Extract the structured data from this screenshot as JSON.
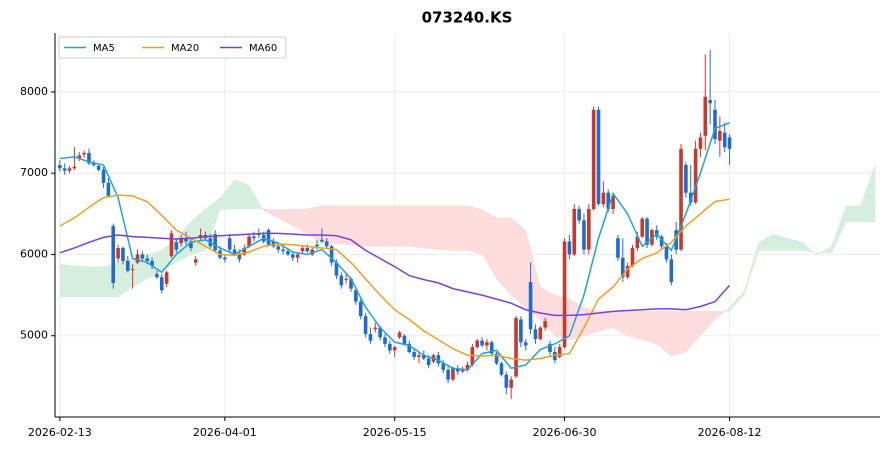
{
  "chart_data": {
    "type": "candlestick",
    "title": "073240.KS",
    "xlim": [
      -1,
      169
    ],
    "ylim": [
      4000,
      8725
    ],
    "xticks": [
      {
        "value": 0,
        "label": "2026-02-13"
      },
      {
        "value": 34,
        "label": "2026-04-01"
      },
      {
        "value": 69,
        "label": "2026-05-15"
      },
      {
        "value": 104,
        "label": "2026-06-30"
      },
      {
        "value": 138,
        "label": "2026-08-12"
      }
    ],
    "yticks": [
      5000,
      6000,
      7000,
      8000
    ],
    "grid": true,
    "legend": "upper left",
    "up_color": "#c8392b",
    "down_color": "#1f6bd1",
    "candles": [
      [
        7100,
        7160,
        7020,
        7060
      ],
      [
        7060,
        7120,
        6980,
        7030
      ],
      [
        7030,
        7090,
        7000,
        7060
      ],
      [
        7060,
        7320,
        7040,
        7080
      ],
      [
        7180,
        7260,
        7150,
        7220
      ],
      [
        7230,
        7280,
        7190,
        7250
      ],
      [
        7250,
        7300,
        7100,
        7120
      ],
      [
        7120,
        7160,
        7080,
        7100
      ],
      [
        7090,
        7120,
        7020,
        7040
      ],
      [
        7040,
        7080,
        6820,
        6880
      ],
      [
        6880,
        6940,
        6700,
        6720
      ],
      [
        6350,
        6380,
        5580,
        5650
      ],
      [
        5950,
        6120,
        5900,
        6080
      ],
      [
        6080,
        6100,
        5880,
        5920
      ],
      [
        5920,
        5980,
        5780,
        5800
      ],
      [
        5820,
        5880,
        5580,
        5820
      ],
      [
        5900,
        6060,
        5880,
        6000
      ],
      [
        6000,
        6040,
        5920,
        5950
      ],
      [
        5950,
        6000,
        5880,
        5920
      ],
      [
        5920,
        5960,
        5820,
        5860
      ],
      [
        5760,
        5800,
        5700,
        5720
      ],
      [
        5720,
        5760,
        5520,
        5560
      ],
      [
        5640,
        5800,
        5600,
        5780
      ],
      [
        5980,
        6300,
        5960,
        6260
      ],
      [
        6150,
        6200,
        6020,
        6060
      ],
      [
        6140,
        6240,
        6100,
        6200
      ],
      [
        6200,
        6280,
        6120,
        6160
      ],
      [
        6160,
        6200,
        6040,
        6080
      ],
      [
        5900,
        5980,
        5860,
        5940
      ],
      [
        6200,
        6320,
        6180,
        6240
      ],
      [
        6240,
        6280,
        6180,
        6200
      ],
      [
        6200,
        6250,
        6060,
        6100
      ],
      [
        6250,
        6300,
        6020,
        6050
      ],
      [
        6050,
        6100,
        5940,
        5960
      ],
      [
        5960,
        6000,
        5900,
        5940
      ],
      [
        6200,
        6250,
        6020,
        6060
      ],
      [
        6060,
        6120,
        5980,
        6000
      ],
      [
        6000,
        6060,
        5900,
        5940
      ],
      [
        6000,
        6120,
        5980,
        6080
      ],
      [
        6100,
        6250,
        6080,
        6220
      ],
      [
        6220,
        6280,
        6160,
        6200
      ],
      [
        6260,
        6320,
        6200,
        6240
      ],
      [
        6240,
        6280,
        6140,
        6160
      ],
      [
        6300,
        6320,
        6100,
        6120
      ],
      [
        6160,
        6200,
        6080,
        6100
      ],
      [
        6100,
        6150,
        6020,
        6060
      ],
      [
        6060,
        6100,
        6000,
        6040
      ],
      [
        6040,
        6080,
        5980,
        6000
      ],
      [
        6000,
        6040,
        5920,
        5960
      ],
      [
        5960,
        6020,
        5900,
        6000
      ],
      [
        6040,
        6120,
        6000,
        6080
      ],
      [
        6080,
        6120,
        6020,
        6040
      ],
      [
        6000,
        6080,
        5980,
        6060
      ],
      [
        6120,
        6180,
        6060,
        6100
      ],
      [
        6180,
        6320,
        6140,
        6160
      ],
      [
        6160,
        6200,
        6080,
        6100
      ],
      [
        6100,
        6120,
        5860,
        5900
      ],
      [
        5900,
        5940,
        5700,
        5740
      ],
      [
        5740,
        5780,
        5580,
        5620
      ],
      [
        5700,
        5760,
        5640,
        5700
      ],
      [
        5700,
        5720,
        5540,
        5580
      ],
      [
        5560,
        5600,
        5380,
        5420
      ],
      [
        5420,
        5460,
        5200,
        5240
      ],
      [
        5240,
        5280,
        4980,
        5020
      ],
      [
        5020,
        5100,
        4900,
        4940
      ],
      [
        5080,
        5160,
        5040,
        5100
      ],
      [
        5100,
        5120,
        4940,
        4980
      ],
      [
        4980,
        5020,
        4860,
        4900
      ],
      [
        4900,
        4940,
        4780,
        4820
      ],
      [
        4820,
        4880,
        4740,
        4860
      ],
      [
        4980,
        5060,
        4960,
        5040
      ],
      [
        5000,
        5020,
        4880,
        4900
      ],
      [
        4900,
        4940,
        4780,
        4800
      ],
      [
        4800,
        4840,
        4700,
        4740
      ],
      [
        4740,
        4800,
        4660,
        4760
      ],
      [
        4760,
        4820,
        4700,
        4720
      ],
      [
        4720,
        4760,
        4600,
        4640
      ],
      [
        4680,
        4780,
        4660,
        4760
      ],
      [
        4760,
        4800,
        4620,
        4660
      ],
      [
        4660,
        4700,
        4540,
        4580
      ],
      [
        4580,
        4640,
        4420,
        4460
      ],
      [
        4460,
        4620,
        4440,
        4600
      ],
      [
        4600,
        4640,
        4520,
        4560
      ],
      [
        4560,
        4620,
        4540,
        4580
      ],
      [
        4580,
        4680,
        4560,
        4640
      ],
      [
        4640,
        4900,
        4620,
        4860
      ],
      [
        4860,
        4960,
        4840,
        4940
      ],
      [
        4940,
        4980,
        4860,
        4880
      ],
      [
        4880,
        4960,
        4820,
        4920
      ],
      [
        4920,
        4940,
        4760,
        4780
      ],
      [
        4780,
        4800,
        4640,
        4660
      ],
      [
        4660,
        4680,
        4500,
        4520
      ],
      [
        4520,
        4560,
        4280,
        4360
      ],
      [
        4360,
        4500,
        4220,
        4460
      ],
      [
        4500,
        5240,
        4480,
        5220
      ],
      [
        5200,
        5240,
        4860,
        4920
      ],
      [
        4920,
        4960,
        4820,
        4880
      ],
      [
        5660,
        5900,
        5020,
        5080
      ],
      [
        5080,
        5140,
        4900,
        4960
      ],
      [
        4960,
        5120,
        4940,
        5100
      ],
      [
        5100,
        5220,
        5060,
        5180
      ],
      [
        4900,
        4940,
        4760,
        4800
      ],
      [
        4800,
        4860,
        4660,
        4700
      ],
      [
        4740,
        4900,
        4720,
        4860
      ],
      [
        4860,
        6200,
        4840,
        6160
      ],
      [
        6160,
        6240,
        5940,
        6000
      ],
      [
        6000,
        6620,
        5980,
        6560
      ],
      [
        6560,
        6600,
        6380,
        6420
      ],
      [
        6420,
        6500,
        6000,
        6060
      ],
      [
        6060,
        6620,
        6000,
        6560
      ],
      [
        6560,
        7820,
        6540,
        7780
      ],
      [
        7780,
        7820,
        6600,
        6620
      ],
      [
        6620,
        6900,
        6580,
        6760
      ],
      [
        6760,
        6800,
        6520,
        6560
      ],
      [
        6560,
        6760,
        6500,
        6720
      ],
      [
        6200,
        6240,
        5920,
        5960
      ],
      [
        5960,
        6200,
        5660,
        5720
      ],
      [
        5720,
        5900,
        5700,
        5860
      ],
      [
        5860,
        6120,
        5840,
        6080
      ],
      [
        6080,
        6280,
        6040,
        6220
      ],
      [
        6220,
        6460,
        6200,
        6440
      ],
      [
        6440,
        6460,
        6080,
        6120
      ],
      [
        6120,
        6320,
        6100,
        6300
      ],
      [
        6300,
        6360,
        6180,
        6220
      ],
      [
        6220,
        6240,
        6060,
        6100
      ],
      [
        6100,
        6140,
        5900,
        5940
      ],
      [
        5940,
        6000,
        5620,
        5660
      ],
      [
        6300,
        6400,
        6000,
        6060
      ],
      [
        6060,
        7360,
        6040,
        7300
      ],
      [
        7100,
        7140,
        6700,
        6760
      ],
      [
        6760,
        7100,
        6600,
        6640
      ],
      [
        6640,
        7400,
        6620,
        7300
      ],
      [
        7300,
        7500,
        7200,
        7440
      ],
      [
        7460,
        8460,
        7280,
        7940
      ],
      [
        7900,
        8520,
        7600,
        7860
      ],
      [
        7780,
        7900,
        7360,
        7420
      ],
      [
        7400,
        7700,
        7200,
        7520
      ],
      [
        7500,
        7620,
        7260,
        7320
      ],
      [
        7440,
        7480,
        7100,
        7300
      ]
    ],
    "series": [
      {
        "name": "MA5",
        "color": "#1fa3dc",
        "x": [
          0,
          3,
          6,
          9,
          12,
          15,
          18,
          21,
          24,
          27,
          30,
          33,
          36,
          39,
          42,
          45,
          48,
          51,
          54,
          57,
          60,
          63,
          66,
          69,
          72,
          75,
          78,
          81,
          84,
          87,
          90,
          93,
          96,
          99,
          102,
          105,
          108,
          111,
          114,
          117,
          120,
          123,
          126,
          129,
          132,
          135,
          138
        ],
        "values": [
          7180,
          7200,
          7140,
          7100,
          6700,
          5950,
          5900,
          5780,
          6000,
          6150,
          6180,
          6080,
          6000,
          6100,
          6200,
          6140,
          6030,
          6000,
          6060,
          5900,
          5700,
          5350,
          5100,
          4920,
          4880,
          4760,
          4700,
          4600,
          4580,
          4780,
          4820,
          4600,
          4640,
          4830,
          4900,
          5000,
          5500,
          6200,
          6750,
          6500,
          6100,
          6250,
          6050,
          6500,
          7000,
          7550,
          7620
        ]
      },
      {
        "name": "MA20",
        "color": "#f0a020",
        "x": [
          0,
          3,
          6,
          9,
          12,
          15,
          18,
          21,
          24,
          27,
          30,
          33,
          36,
          39,
          42,
          45,
          48,
          51,
          54,
          57,
          60,
          63,
          66,
          69,
          72,
          75,
          78,
          81,
          84,
          87,
          90,
          93,
          96,
          99,
          102,
          105,
          108,
          111,
          114,
          117,
          120,
          123,
          126,
          129,
          132,
          135,
          138
        ],
        "values": [
          6350,
          6450,
          6580,
          6700,
          6730,
          6720,
          6650,
          6480,
          6300,
          6200,
          6100,
          6000,
          5990,
          6030,
          6100,
          6130,
          6120,
          6100,
          6080,
          6060,
          5900,
          5700,
          5500,
          5320,
          5200,
          5060,
          4950,
          4840,
          4760,
          4750,
          4760,
          4720,
          4700,
          4720,
          4760,
          4780,
          5100,
          5450,
          5600,
          5820,
          5950,
          6020,
          6150,
          6350,
          6500,
          6650,
          6680
        ]
      },
      {
        "name": "MA60",
        "color": "#7b3fe0",
        "x": [
          0,
          3,
          6,
          9,
          12,
          15,
          18,
          21,
          24,
          27,
          30,
          33,
          36,
          39,
          42,
          45,
          48,
          51,
          54,
          57,
          60,
          63,
          66,
          69,
          72,
          75,
          78,
          81,
          84,
          87,
          90,
          93,
          96,
          99,
          102,
          105,
          108,
          111,
          114,
          117,
          120,
          123,
          126,
          129,
          132,
          135,
          138
        ],
        "values": [
          6020,
          6080,
          6150,
          6210,
          6240,
          6220,
          6210,
          6200,
          6190,
          6200,
          6220,
          6230,
          6240,
          6250,
          6260,
          6260,
          6250,
          6240,
          6240,
          6230,
          6180,
          6050,
          5950,
          5850,
          5740,
          5690,
          5650,
          5580,
          5540,
          5500,
          5450,
          5400,
          5320,
          5280,
          5250,
          5250,
          5260,
          5280,
          5300,
          5310,
          5320,
          5330,
          5330,
          5320,
          5360,
          5420,
          5620
        ]
      }
    ],
    "cloud": {
      "up_color": "#d6eedd",
      "down_color": "#fcdcdc",
      "x": [
        0,
        3,
        6,
        9,
        12,
        15,
        18,
        21,
        24,
        27,
        30,
        33,
        36,
        39,
        42,
        45,
        48,
        51,
        54,
        57,
        60,
        63,
        66,
        69,
        72,
        75,
        78,
        81,
        84,
        87,
        90,
        93,
        96,
        99,
        102,
        105,
        108,
        111,
        114,
        117,
        120,
        123,
        126,
        129,
        132,
        135,
        138,
        141,
        144,
        147,
        150,
        153,
        156,
        159,
        162,
        165,
        168
      ],
      "span_a": [
        5880,
        5860,
        5850,
        5850,
        5900,
        5950,
        6000,
        6050,
        6200,
        6400,
        6560,
        6700,
        6920,
        6850,
        6540,
        6450,
        6350,
        6250,
        6150,
        6130,
        6120,
        6100,
        6100,
        6100,
        6100,
        6080,
        6060,
        6050,
        6050,
        6000,
        5700,
        5500,
        5350,
        5200,
        5000,
        4950,
        5000,
        5050,
        5100,
        5000,
        4950,
        4900,
        4750,
        4800,
        5000,
        5200,
        5350,
        5550,
        6150,
        6250,
        6200,
        6150,
        6000,
        6100,
        6600,
        6600,
        7100
      ],
      "span_b": [
        5480,
        5480,
        5480,
        5480,
        5480,
        5600,
        5700,
        5800,
        5900,
        6000,
        6050,
        6550,
        6560,
        6560,
        6560,
        6550,
        6560,
        6560,
        6600,
        6600,
        6600,
        6600,
        6600,
        6600,
        6600,
        6600,
        6600,
        6600,
        6600,
        6550,
        6450,
        6450,
        6300,
        5600,
        5500,
        5450,
        5350,
        5300,
        5300,
        5300,
        5300,
        5300,
        5300,
        5300,
        5300,
        5300,
        5300,
        5500,
        6050,
        6050,
        6050,
        6050,
        6020,
        6020,
        6400,
        6400,
        6400
      ]
    }
  }
}
